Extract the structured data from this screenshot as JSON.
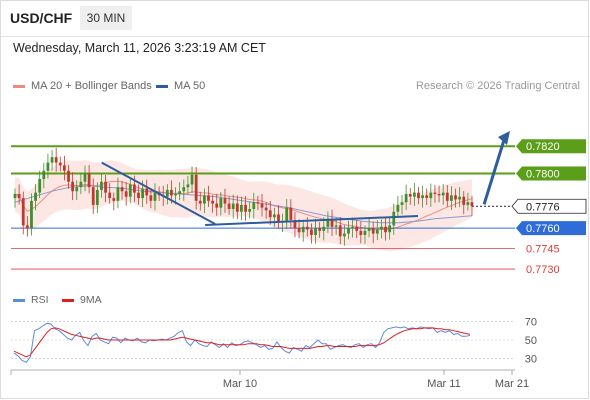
{
  "header": {
    "symbol": "USD/CHF",
    "timeframe": "30 MIN",
    "datetime": "Wednesday, March 11, 2026 3:23:19 AM CET"
  },
  "legend": {
    "bollinger": {
      "label": "MA 20 + Bollinger Bands",
      "color": "#f08a80"
    },
    "ma50": {
      "label": "MA 50",
      "color": "#2e5d9e"
    },
    "credit": "Research © 2026 Trading Central"
  },
  "rsi_legend": {
    "rsi": {
      "label": "RSI",
      "color": "#5b8cdb"
    },
    "ma9": {
      "label": "9MA",
      "color": "#e02020"
    }
  },
  "chart_data": [
    {
      "type": "candlestick",
      "ylim": [
        0.7722,
        0.7848
      ],
      "x_ticks": [
        "Mar 10",
        "Mar 11",
        "Mar 21"
      ],
      "levels": [
        {
          "value": 0.782,
          "label": "0.7820",
          "style": "resistance",
          "color": "#5a9e1a"
        },
        {
          "value": 0.78,
          "label": "0.7800",
          "style": "resistance",
          "color": "#5a9e1a"
        },
        {
          "value": 0.7776,
          "label": "0.7776",
          "style": "last-price",
          "color": "#222222"
        },
        {
          "value": 0.776,
          "label": "0.7760",
          "style": "pivot",
          "color": "#2f6cd8"
        },
        {
          "value": 0.7745,
          "label": "0.7745",
          "style": "support",
          "color": "#e23b3b"
        },
        {
          "value": 0.773,
          "label": "0.7730",
          "style": "support",
          "color": "#e23b3b"
        }
      ],
      "closes": [
        0.7785,
        0.7782,
        0.7762,
        0.776,
        0.778,
        0.7786,
        0.7796,
        0.7802,
        0.7808,
        0.7812,
        0.7808,
        0.7806,
        0.7802,
        0.7794,
        0.7787,
        0.779,
        0.7794,
        0.78,
        0.779,
        0.7777,
        0.7788,
        0.7794,
        0.7786,
        0.7782,
        0.778,
        0.779,
        0.7787,
        0.7783,
        0.7792,
        0.7786,
        0.7782,
        0.7789,
        0.7784,
        0.778,
        0.7786,
        0.7784,
        0.7783,
        0.7788,
        0.7784,
        0.7785,
        0.7787,
        0.779,
        0.7792,
        0.7799,
        0.778,
        0.7778,
        0.7784,
        0.778,
        0.7778,
        0.7775,
        0.7782,
        0.7778,
        0.7774,
        0.7778,
        0.7772,
        0.7777,
        0.7772,
        0.7774,
        0.7779,
        0.7778,
        0.7775,
        0.7773,
        0.7768,
        0.777,
        0.7764,
        0.7765,
        0.7775,
        0.7766,
        0.776,
        0.7757,
        0.7761,
        0.7759,
        0.7755,
        0.776,
        0.7758,
        0.7761,
        0.7767,
        0.7761,
        0.7762,
        0.7754,
        0.7756,
        0.776,
        0.7761,
        0.7758,
        0.7755,
        0.7758,
        0.776,
        0.7756,
        0.7759,
        0.7761,
        0.7757,
        0.7762,
        0.7772,
        0.7777,
        0.7779,
        0.7785,
        0.7783,
        0.7786,
        0.7782,
        0.7784,
        0.7782,
        0.7786,
        0.7785,
        0.7784,
        0.7786,
        0.778,
        0.7784,
        0.7781,
        0.7783,
        0.7777,
        0.7779,
        0.7776
      ],
      "bollinger_width": 0.0018,
      "ma50": [
        0.7779,
        0.7783,
        0.7787,
        0.779,
        0.7791,
        0.779,
        0.7789,
        0.7787,
        0.7786,
        0.7785,
        0.7784,
        0.7783,
        0.7781,
        0.7779,
        0.7777,
        0.7775,
        0.7772,
        0.7769,
        0.7767,
        0.7765,
        0.7764,
        0.7764,
        0.7765,
        0.7767,
        0.7768,
        0.7769
      ],
      "trendline": {
        "from": [
          0.18,
          0.7808
        ],
        "to": [
          0.405,
          0.7763
        ]
      },
      "arrow": {
        "from": [
          0.78,
          0.7776
        ],
        "to": [
          0.84,
          0.7818
        ]
      }
    },
    {
      "type": "line",
      "name": "RSI",
      "yticks": [
        70,
        50,
        30
      ],
      "ylim": [
        20,
        80
      ],
      "series": [
        {
          "name": "RSI",
          "color": "#5b8cdb",
          "values": [
            36,
            33,
            28,
            26,
            32,
            60,
            62,
            65,
            68,
            67,
            62,
            60,
            56,
            52,
            50,
            55,
            58,
            49,
            44,
            54,
            57,
            50,
            48,
            46,
            53,
            52,
            47,
            52,
            50,
            49,
            52,
            48,
            47,
            50,
            49,
            50,
            51,
            50,
            52,
            54,
            58,
            60,
            48,
            44,
            50,
            46,
            44,
            43,
            48,
            45,
            42,
            46,
            42,
            47,
            44,
            45,
            48,
            49,
            47,
            45,
            42,
            44,
            40,
            41,
            48,
            42,
            38,
            36,
            42,
            40,
            38,
            44,
            42,
            46,
            50,
            46,
            46,
            40,
            42,
            44,
            45,
            43,
            42,
            45,
            46,
            42,
            45,
            46,
            42,
            47,
            58,
            62,
            63,
            64,
            63,
            64,
            62,
            63,
            62,
            64,
            63,
            62,
            63,
            58,
            60,
            58,
            60,
            56,
            57,
            54,
            54,
            55
          ]
        },
        {
          "name": "9MA",
          "color": "#e02020",
          "values": [
            38,
            36,
            34,
            32,
            34,
            40,
            46,
            52,
            58,
            62,
            63,
            62,
            60,
            58,
            56,
            55,
            54,
            53,
            52,
            51,
            52,
            52,
            51,
            50,
            50,
            50,
            50,
            50,
            50,
            50,
            50,
            50,
            50,
            50,
            50,
            50,
            50,
            50,
            50,
            51,
            52,
            53,
            52,
            51,
            50,
            49,
            48,
            47,
            47,
            46,
            45,
            45,
            45,
            45,
            45,
            45,
            45,
            46,
            46,
            46,
            45,
            45,
            44,
            43,
            43,
            43,
            42,
            41,
            41,
            41,
            41,
            41,
            41,
            42,
            43,
            43,
            44,
            44,
            43,
            43,
            43,
            43,
            43,
            43,
            44,
            44,
            44,
            44,
            44,
            45,
            47,
            50,
            53,
            56,
            58,
            60,
            61,
            62,
            62,
            62,
            63,
            63,
            63,
            62,
            62,
            61,
            61,
            60,
            59,
            58,
            57,
            56
          ]
        }
      ]
    }
  ]
}
